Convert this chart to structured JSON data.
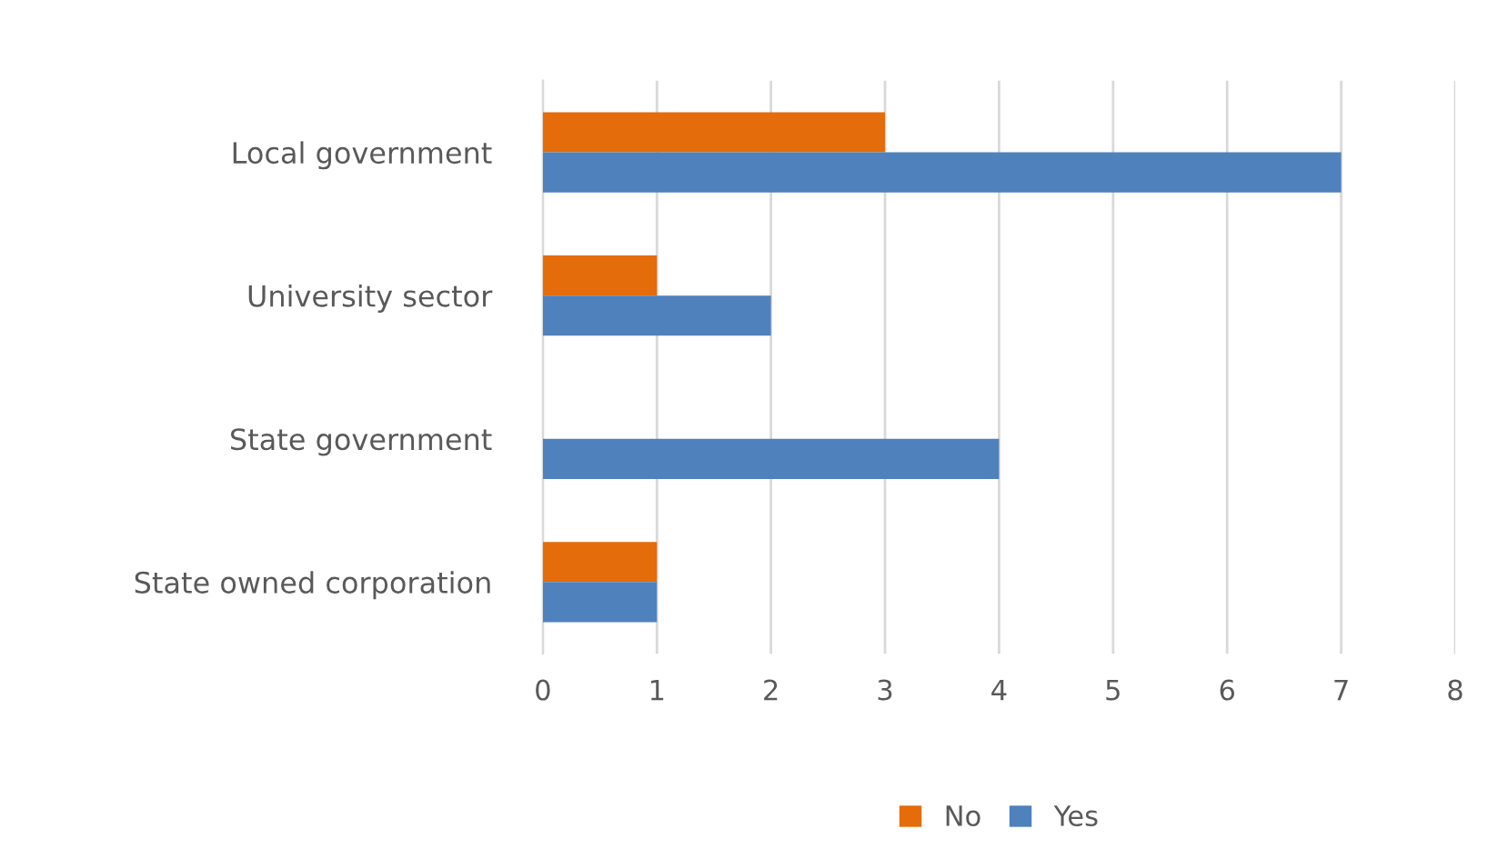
{
  "chart_data": {
    "type": "bar",
    "orientation": "horizontal",
    "categories": [
      "Local government",
      "University sector",
      "State government",
      "State owned corporation"
    ],
    "series": [
      {
        "name": "No",
        "color": "#e46c0a",
        "values": [
          3,
          1,
          0,
          1
        ]
      },
      {
        "name": "Yes",
        "color": "#4f81bd",
        "values": [
          7,
          2,
          4,
          1
        ]
      }
    ],
    "xlim": [
      0,
      8
    ],
    "xticks": [
      0,
      1,
      2,
      3,
      4,
      5,
      6,
      7,
      8
    ],
    "grid": "x",
    "legend": "bottom"
  }
}
